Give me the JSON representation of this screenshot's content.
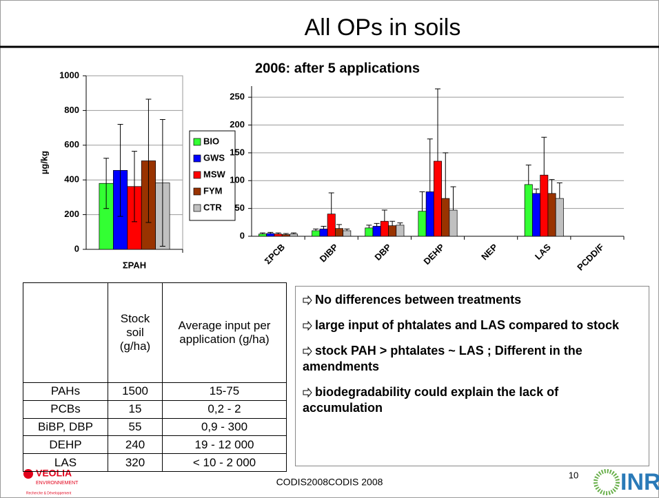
{
  "title": "All OPs in soils",
  "chart_data": [
    {
      "type": "bar",
      "categories": [
        "ΣPAH"
      ],
      "ylabel": "µg/kg",
      "series": [
        {
          "name": "BIO",
          "color": "#33ff33",
          "values": [
            380
          ],
          "errors": [
            145
          ]
        },
        {
          "name": "GWS",
          "color": "#0000ff",
          "values": [
            455
          ],
          "errors": [
            265
          ]
        },
        {
          "name": "MSW",
          "color": "#ff0000",
          "values": [
            362
          ],
          "errors": [
            203
          ]
        },
        {
          "name": "FYM",
          "color": "#993300",
          "values": [
            510
          ],
          "errors": [
            355
          ]
        },
        {
          "name": "CTR",
          "color": "#c0c0c0",
          "values": [
            383
          ],
          "errors": [
            365
          ]
        }
      ],
      "error_bars": "both",
      "ylim": [
        0,
        1000
      ],
      "yticks": [
        0,
        200,
        400,
        600,
        800,
        1000
      ],
      "grid": true,
      "legend": "right"
    },
    {
      "type": "bar",
      "title": "2006: after 5 applications",
      "categories": [
        "ΣPCB",
        "DIBP",
        "DBP",
        "DEHP",
        "NEP",
        "LAS",
        "PCDD/F"
      ],
      "series": [
        {
          "name": "BIO",
          "color": "#33ff33",
          "values": [
            4,
            10,
            15,
            45,
            null,
            93,
            null
          ],
          "errors": [
            2,
            3,
            5,
            35,
            null,
            35,
            null
          ]
        },
        {
          "name": "GWS",
          "color": "#0000ff",
          "values": [
            5,
            13,
            18,
            80,
            null,
            77,
            null
          ],
          "errors": [
            2,
            5,
            5,
            95,
            null,
            8,
            null
          ]
        },
        {
          "name": "MSW",
          "color": "#ff0000",
          "values": [
            4,
            40,
            27,
            135,
            null,
            110,
            null
          ],
          "errors": [
            2,
            38,
            20,
            130,
            null,
            68,
            null
          ]
        },
        {
          "name": "FYM",
          "color": "#993300",
          "values": [
            3,
            14,
            19,
            68,
            null,
            77,
            null
          ],
          "errors": [
            2,
            7,
            8,
            82,
            null,
            25,
            null
          ]
        },
        {
          "name": "CTR",
          "color": "#c0c0c0",
          "values": [
            4,
            10,
            20,
            47,
            null,
            68,
            null
          ],
          "errors": [
            2,
            3,
            4,
            42,
            null,
            28,
            null
          ]
        }
      ],
      "error_bars": "up",
      "ylim": [
        0,
        270
      ],
      "yticks": [
        0,
        50,
        100,
        150,
        200,
        250
      ],
      "grid": true
    }
  ],
  "table": {
    "header": [
      "Stock soil (g/ha)",
      "Average input per application (g/ha)"
    ],
    "rows": [
      [
        "PAHs",
        1500,
        "15-75"
      ],
      [
        "PCBs",
        15,
        "0,2 - 2"
      ],
      [
        "BiBP, DBP",
        55,
        "0,9 - 300"
      ],
      [
        "DEHP",
        240,
        "19 - 12 000"
      ],
      [
        "LAS",
        320,
        "< 10 -  2 000"
      ]
    ]
  },
  "bullets": [
    "No differences between treatments",
    "large input of phtalates and LAS compared to stock",
    "stock PAH > phtalates ~ LAS ; Different in the amendments",
    "biodegradability could explain the lack of accumulation"
  ],
  "footer": {
    "text": "CODIS2008CODIS 2008",
    "page": 10,
    "logo_left": "VEOLIA",
    "logo_left_sub": "ENVIRONNEMENT",
    "logo_left_sub2": "Recherche & Développement",
    "logo_right": "INRA"
  }
}
